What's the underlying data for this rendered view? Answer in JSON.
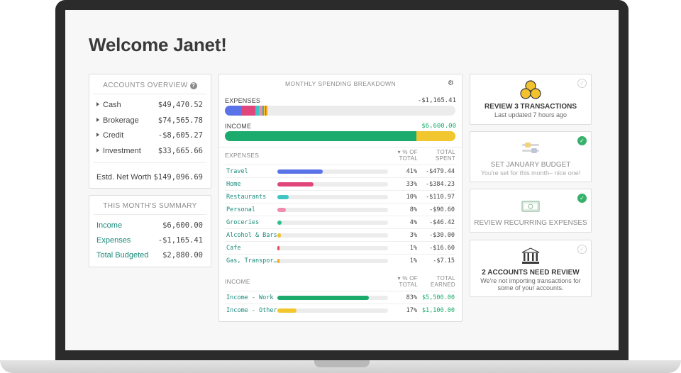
{
  "page_title": "Welcome Janet!",
  "accounts_overview": {
    "title": "ACCOUNTS OVERVIEW",
    "help_glyph": "?",
    "rows": [
      {
        "label": "Cash",
        "value": "$49,470.52"
      },
      {
        "label": "Brokerage",
        "value": "$74,565.78"
      },
      {
        "label": "Credit",
        "value": "-$8,605.27"
      },
      {
        "label": "Investment",
        "value": "$33,665.66"
      }
    ],
    "net_worth": {
      "label": "Estd. Net Worth",
      "value": "$149,096.69"
    }
  },
  "summary": {
    "title": "THIS MONTH'S SUMMARY",
    "rows": [
      {
        "label": "Income",
        "value": "$6,600.00"
      },
      {
        "label": "Expenses",
        "value": "-$1,165.41"
      },
      {
        "label": "Total Budgeted",
        "value": "$2,880.00"
      }
    ]
  },
  "breakdown": {
    "title": "MONTHLY SPENDING BREAKDOWN",
    "settings_glyph": "⚙",
    "expenses_bar": {
      "label": "EXPENSES",
      "amount": "-$1,165.41",
      "fraction_of_income": 0.177
    },
    "income_bar": {
      "label": "INCOME",
      "amount": "$6,600.00"
    },
    "expenses_table": {
      "section": "EXPENSES",
      "col_pct": "▾ % OF TOTAL",
      "col_amt": "TOTAL SPENT",
      "rows": [
        {
          "name": "Travel",
          "pct": "41%",
          "amount": "-$479.44",
          "share": 0.41,
          "color": "#5b73e8"
        },
        {
          "name": "Home",
          "pct": "33%",
          "amount": "-$384.23",
          "share": 0.33,
          "color": "#e0457b"
        },
        {
          "name": "Restaurants",
          "pct": "10%",
          "amount": "-$110.97",
          "share": 0.1,
          "color": "#3ec7c2"
        },
        {
          "name": "Personal",
          "pct": "8%",
          "amount": "-$90.60",
          "share": 0.08,
          "color": "#f08bb0"
        },
        {
          "name": "Groceries",
          "pct": "4%",
          "amount": "-$46.42",
          "share": 0.04,
          "color": "#2fbf8f"
        },
        {
          "name": "Alcohol & Bars",
          "pct": "3%",
          "amount": "-$30.00",
          "share": 0.03,
          "color": "#f2c12e"
        },
        {
          "name": "Cafe",
          "pct": "1%",
          "amount": "-$16.60",
          "share": 0.01,
          "color": "#e84a4a"
        },
        {
          "name": "Gas, Transpor…",
          "pct": "1%",
          "amount": "-$7.15",
          "share": 0.01,
          "color": "#f5a623"
        }
      ]
    },
    "income_table": {
      "section": "INCOME",
      "col_pct": "▾ % OF TOTAL",
      "col_amt": "TOTAL EARNED",
      "rows": [
        {
          "name": "Income - Work",
          "pct": "83%",
          "amount": "$5,500.00",
          "share": 0.83,
          "color": "#1aab6d"
        },
        {
          "name": "Income - Other",
          "pct": "17%",
          "amount": "$1,100.00",
          "share": 0.17,
          "color": "#f2c62e"
        }
      ]
    }
  },
  "tasks": [
    {
      "title": "REVIEW 3 TRANSACTIONS",
      "subtitle": "Last updated 7 hours ago",
      "done": false,
      "icon": "coins-icon"
    },
    {
      "title": "SET JANUARY BUDGET",
      "subtitle": "You're set for this month– nice one!",
      "done": true,
      "icon": "sliders-icon"
    },
    {
      "title": "REVIEW RECURRING EXPENSES",
      "subtitle": "",
      "done": true,
      "icon": "banknote-icon"
    },
    {
      "title": "2 ACCOUNTS NEED REVIEW",
      "subtitle": "We're not importing transactions for some of your accounts.",
      "done": false,
      "icon": "bank-icon"
    }
  ],
  "check_glyph": "✓",
  "colors": {
    "accent": "#1a8a7a",
    "income_green": "#1aab6d",
    "income_yellow": "#f2c62e",
    "check_green": "#36b26b"
  }
}
